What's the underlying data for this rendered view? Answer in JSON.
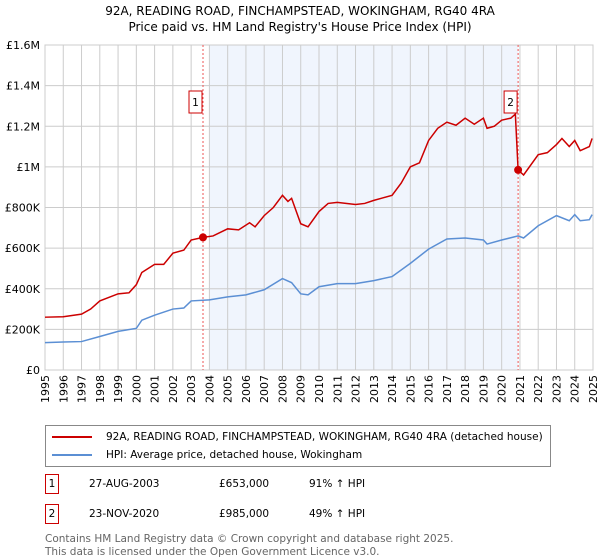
{
  "chart_data": {
    "type": "line",
    "title": "92A, READING ROAD, FINCHAMPSTEAD, WOKINGHAM, RG40 4RA",
    "subtitle": "Price paid vs. HM Land Registry's House Price Index (HPI)",
    "ylim": [
      0,
      1600000
    ],
    "xlim": [
      1995,
      2025
    ],
    "y_ticks": [
      {
        "v": 0,
        "label": "£0"
      },
      {
        "v": 200000,
        "label": "£200K"
      },
      {
        "v": 400000,
        "label": "£400K"
      },
      {
        "v": 600000,
        "label": "£600K"
      },
      {
        "v": 800000,
        "label": "£800K"
      },
      {
        "v": 1000000,
        "label": "£1M"
      },
      {
        "v": 1200000,
        "label": "£1.2M"
      },
      {
        "v": 1400000,
        "label": "£1.4M"
      },
      {
        "v": 1600000,
        "label": "£1.6M"
      }
    ],
    "x_ticks": [
      "1995",
      "1996",
      "1997",
      "1998",
      "1999",
      "2000",
      "2001",
      "2002",
      "2003",
      "2004",
      "2005",
      "2006",
      "2007",
      "2008",
      "2009",
      "2010",
      "2011",
      "2012",
      "2013",
      "2014",
      "2015",
      "2016",
      "2017",
      "2018",
      "2019",
      "2020",
      "2021",
      "2022",
      "2023",
      "2024",
      "2025"
    ],
    "grid": true,
    "shaded_range": [
      2004.0,
      2020.9
    ],
    "series": [
      {
        "name": "92A, READING ROAD, FINCHAMPSTEAD, WOKINGHAM, RG40 4RA (detached house)",
        "color": "#cc0000",
        "x": [
          1995,
          1996,
          1997,
          1997.5,
          1998,
          1999,
          1999.6,
          2000,
          2000.3,
          2001,
          2001.5,
          2002,
          2002.6,
          2003,
          2003.65,
          2004.2,
          2005,
          2005.6,
          2006.2,
          2006.5,
          2007,
          2007.5,
          2008,
          2008.3,
          2008.5,
          2009,
          2009.4,
          2010,
          2010.5,
          2011,
          2012,
          2012.5,
          2013,
          2014,
          2014.5,
          2015,
          2015.5,
          2016,
          2016.5,
          2017,
          2017.5,
          2018,
          2018.5,
          2019,
          2019.2,
          2019.6,
          2020,
          2020.5,
          2020.75,
          2020.9,
          2021.2,
          2022,
          2022.5,
          2023,
          2023.3,
          2023.7,
          2024,
          2024.3,
          2024.8,
          2024.95
        ],
        "y": [
          260000,
          262000,
          275000,
          300000,
          340000,
          375000,
          380000,
          420000,
          480000,
          520000,
          520000,
          575000,
          590000,
          640000,
          653000,
          660000,
          695000,
          690000,
          725000,
          705000,
          760000,
          800000,
          860000,
          830000,
          845000,
          720000,
          705000,
          780000,
          820000,
          825000,
          815000,
          820000,
          835000,
          860000,
          920000,
          1000000,
          1020000,
          1130000,
          1190000,
          1220000,
          1205000,
          1240000,
          1210000,
          1240000,
          1190000,
          1200000,
          1230000,
          1240000,
          1260000,
          985000,
          960000,
          1060000,
          1070000,
          1110000,
          1140000,
          1100000,
          1130000,
          1080000,
          1100000,
          1140000
        ]
      },
      {
        "name": "HPI: Average price, detached house, Wokingham",
        "color": "#5b8fd4",
        "x": [
          1995,
          1996,
          1997,
          1998,
          1999,
          2000,
          2000.3,
          2001,
          2002,
          2002.6,
          2003,
          2004,
          2005,
          2006,
          2007,
          2008,
          2008.5,
          2009,
          2009.4,
          2010,
          2011,
          2012,
          2013,
          2014,
          2015,
          2016,
          2017,
          2018,
          2019,
          2019.2,
          2020,
          2020.9,
          2021.2,
          2022,
          2023,
          2023.7,
          2024,
          2024.3,
          2024.8,
          2024.95
        ],
        "y": [
          135000,
          138000,
          140000,
          165000,
          190000,
          205000,
          245000,
          270000,
          300000,
          305000,
          340000,
          345000,
          360000,
          370000,
          395000,
          450000,
          430000,
          375000,
          370000,
          410000,
          425000,
          425000,
          440000,
          460000,
          525000,
          595000,
          645000,
          650000,
          640000,
          620000,
          640000,
          660000,
          650000,
          710000,
          760000,
          735000,
          765000,
          735000,
          740000,
          765000
        ]
      }
    ],
    "sales": [
      {
        "marker": "1",
        "x": 2003.65,
        "y": 653000,
        "date": "27-AUG-2003",
        "price": "£653,000",
        "hpi": "91% ↑ HPI"
      },
      {
        "marker": "2",
        "x": 2020.9,
        "y": 985000,
        "date": "23-NOV-2020",
        "price": "£985,000",
        "hpi": "49% ↑ HPI"
      }
    ]
  },
  "footer": {
    "line1": "Contains HM Land Registry data © Crown copyright and database right 2025.",
    "line2": "This data is licensed under the Open Government Licence v3.0."
  }
}
